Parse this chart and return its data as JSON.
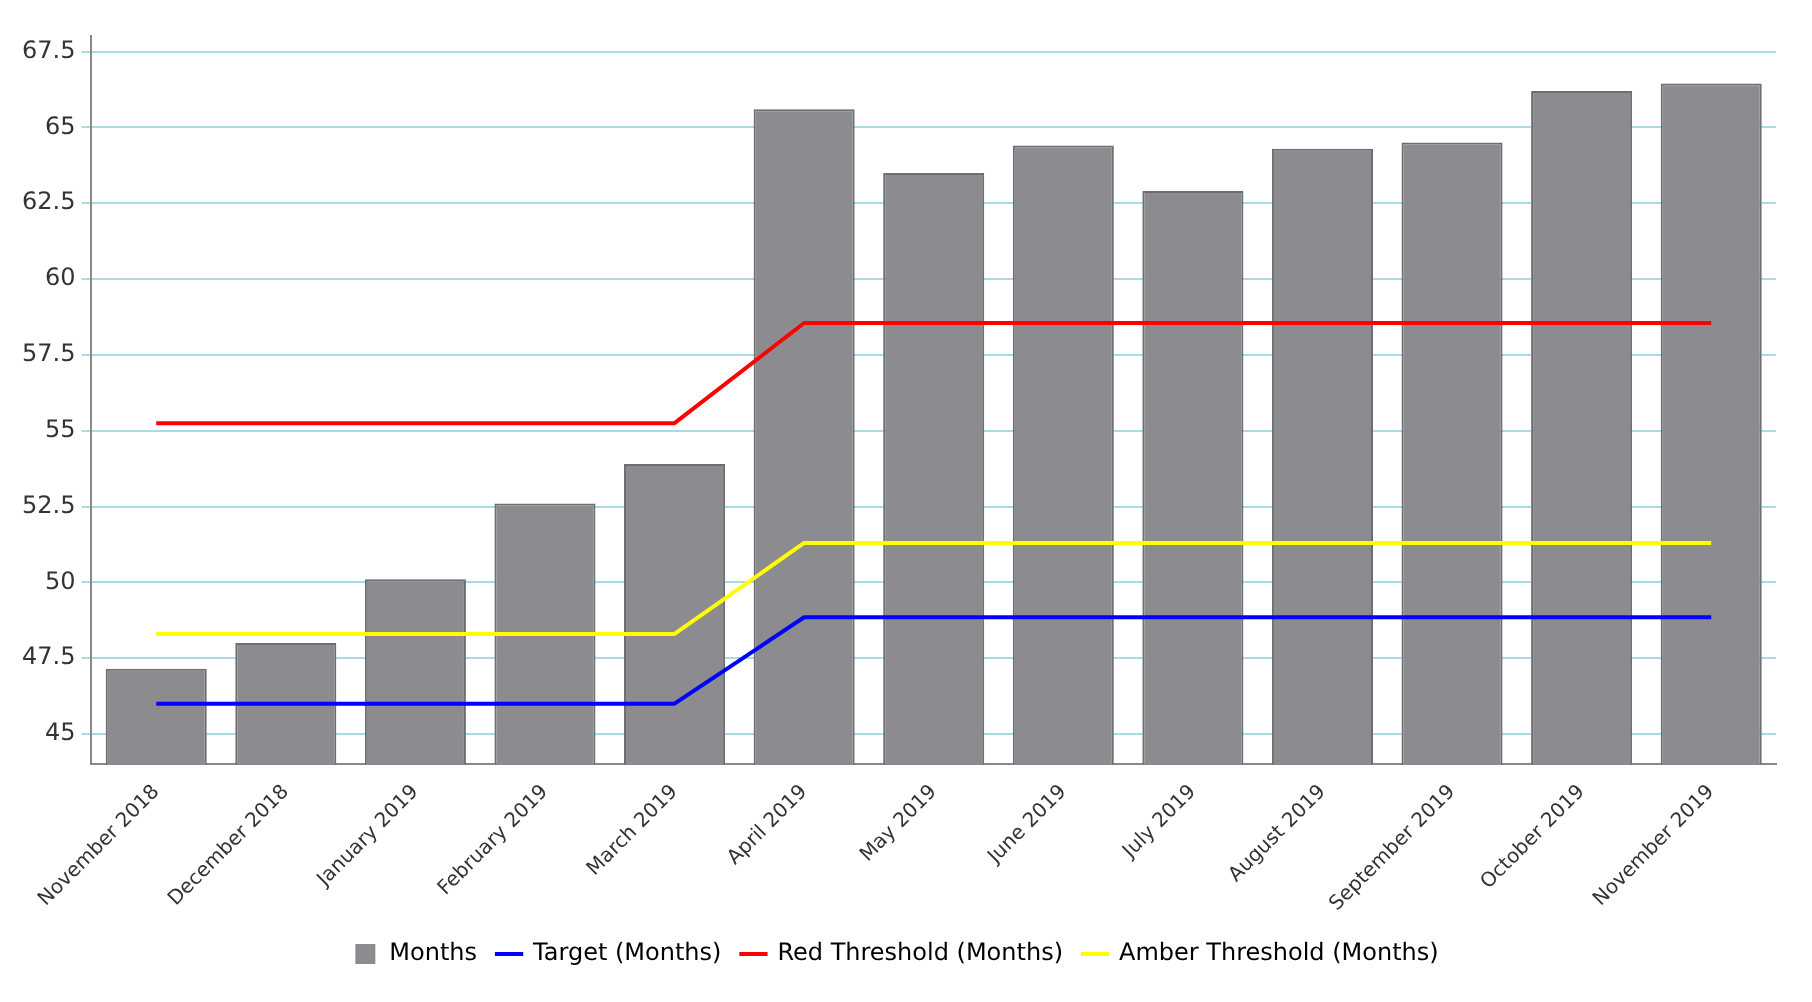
{
  "chart_data": {
    "type": "bar",
    "categories": [
      "November 2018",
      "December 2018",
      "January 2019",
      "February 2019",
      "March 2019",
      "April 2019",
      "May 2019",
      "June 2019",
      "July 2019",
      "August 2019",
      "September 2019",
      "October 2019",
      "November 2019"
    ],
    "series": [
      {
        "name": "Months",
        "color": "#8c8c90",
        "values": [
          47.15,
          48.0,
          50.1,
          52.6,
          53.9,
          65.6,
          63.5,
          64.4,
          62.9,
          64.3,
          64.5,
          66.2,
          66.45
        ]
      },
      {
        "name": "Target (Months)",
        "type": "line",
        "color": "#0000ff",
        "values": [
          46.0,
          46.0,
          46.0,
          46.0,
          46.0,
          48.85,
          48.85,
          48.85,
          48.85,
          48.85,
          48.85,
          48.85,
          48.85
        ]
      },
      {
        "name": "Red Threshold (Months)",
        "type": "line",
        "color": "#ff0000",
        "values": [
          55.25,
          55.25,
          55.25,
          55.25,
          55.25,
          58.55,
          58.55,
          58.55,
          58.55,
          58.55,
          58.55,
          58.55,
          58.55
        ]
      },
      {
        "name": "Amber Threshold (Months)",
        "type": "line",
        "color": "#ffff00",
        "values": [
          48.3,
          48.3,
          48.3,
          48.3,
          48.3,
          51.3,
          51.3,
          51.3,
          51.3,
          51.3,
          51.3,
          51.3,
          51.3
        ]
      }
    ],
    "ylim": [
      44,
      68
    ],
    "yticks": [
      45,
      47.5,
      50,
      52.5,
      55,
      57.5,
      60,
      62.5,
      65,
      67.5
    ],
    "grid": "y",
    "legend": "bottom",
    "marker": "none",
    "line_style": "solid"
  }
}
